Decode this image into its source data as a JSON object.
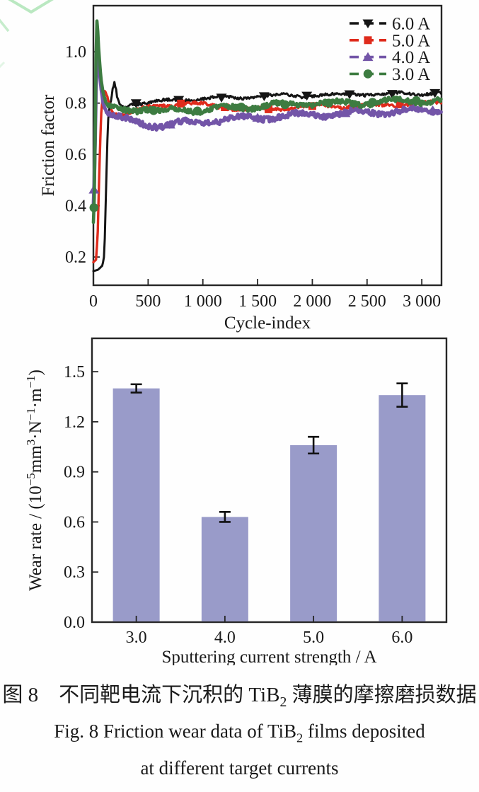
{
  "figure": {
    "captions": {
      "cn_parts": [
        {
          "t": "text",
          "v": "图 8　不同靶电流下沉积的 TiB"
        },
        {
          "t": "sub",
          "v": "2"
        },
        {
          "t": "text",
          "v": " 薄膜的摩擦磨损数据"
        }
      ],
      "en_line1_parts": [
        {
          "t": "text",
          "v": "Fig. 8 Friction wear data of TiB"
        },
        {
          "t": "sub",
          "v": "2"
        },
        {
          "t": "text",
          "v": " films deposited"
        }
      ],
      "en_line2_parts": [
        {
          "t": "text",
          "v": "at different target currents"
        }
      ]
    },
    "artifact_color": "#aee4b6",
    "axis_color": "#262626",
    "text_color": "#1a1a1a"
  },
  "chart_data": [
    {
      "type": "line",
      "title": "",
      "xlabel": "Cycle-index",
      "ylabel": "Friction factor",
      "xlim": [
        0,
        3180
      ],
      "ylim": [
        0.09,
        1.18
      ],
      "xticks": [
        0,
        500,
        1000,
        1500,
        2000,
        2500,
        3000
      ],
      "xtick_labels": [
        "0",
        "500",
        "1 000",
        "1 500",
        "2 000",
        "2 500",
        "3 000"
      ],
      "yticks": [
        0.2,
        0.4,
        0.6,
        0.8,
        1.0
      ],
      "ytick_labels": [
        "0.2",
        "0.4",
        "0.6",
        "0.8",
        "1.0"
      ],
      "grid": false,
      "legend_position": "top-right",
      "series": [
        {
          "name": "6.0 A",
          "color": "#151515",
          "marker": "triangle-down",
          "width": 3,
          "noise": 0.006,
          "points": [
            [
              0,
              0.145
            ],
            [
              40,
              0.15
            ],
            [
              80,
              0.165
            ],
            [
              95,
              0.19
            ],
            [
              105,
              0.28
            ],
            [
              115,
              0.45
            ],
            [
              125,
              0.62
            ],
            [
              135,
              0.73
            ],
            [
              150,
              0.79
            ],
            [
              165,
              0.815
            ],
            [
              180,
              0.86
            ],
            [
              192,
              0.88
            ],
            [
              205,
              0.855
            ],
            [
              220,
              0.815
            ],
            [
              240,
              0.795
            ],
            [
              270,
              0.785
            ],
            [
              310,
              0.79
            ],
            [
              360,
              0.8
            ],
            [
              420,
              0.8
            ],
            [
              500,
              0.802
            ],
            [
              600,
              0.806
            ],
            [
              700,
              0.81
            ],
            [
              850,
              0.815
            ],
            [
              1000,
              0.818
            ],
            [
              1150,
              0.822
            ],
            [
              1300,
              0.82
            ],
            [
              1450,
              0.825
            ],
            [
              1600,
              0.828
            ],
            [
              1750,
              0.83
            ],
            [
              1900,
              0.828
            ],
            [
              2050,
              0.832
            ],
            [
              2200,
              0.83
            ],
            [
              2350,
              0.835
            ],
            [
              2500,
              0.836
            ],
            [
              2650,
              0.834
            ],
            [
              2800,
              0.838
            ],
            [
              2950,
              0.836
            ],
            [
              3100,
              0.84
            ],
            [
              3180,
              0.838
            ]
          ],
          "marker_xs": [
            390,
            780,
            1170,
            1560,
            1950,
            2340,
            2730,
            3120
          ]
        },
        {
          "name": "5.0 A",
          "color": "#df2b1c",
          "marker": "square",
          "width": 3.4,
          "noise": 0.007,
          "points": [
            [
              0,
              0.18
            ],
            [
              25,
              0.19
            ],
            [
              40,
              0.3
            ],
            [
              55,
              0.55
            ],
            [
              70,
              0.75
            ],
            [
              85,
              0.83
            ],
            [
              100,
              0.85
            ],
            [
              120,
              0.835
            ],
            [
              145,
              0.8
            ],
            [
              175,
              0.775
            ],
            [
              210,
              0.762
            ],
            [
              260,
              0.758
            ],
            [
              320,
              0.764
            ],
            [
              400,
              0.772
            ],
            [
              500,
              0.78
            ],
            [
              620,
              0.79
            ],
            [
              750,
              0.797
            ],
            [
              880,
              0.8
            ],
            [
              1000,
              0.793
            ],
            [
              1150,
              0.786
            ],
            [
              1300,
              0.78
            ],
            [
              1450,
              0.775
            ],
            [
              1600,
              0.776
            ],
            [
              1750,
              0.78
            ],
            [
              1900,
              0.786
            ],
            [
              2050,
              0.79
            ],
            [
              2200,
              0.786
            ],
            [
              2350,
              0.79
            ],
            [
              2500,
              0.792
            ],
            [
              2650,
              0.79
            ],
            [
              2800,
              0.795
            ],
            [
              2950,
              0.797
            ],
            [
              3100,
              0.8
            ],
            [
              3180,
              0.8
            ]
          ],
          "marker_xs": [
            800,
            1200,
            1600,
            2000,
            2400,
            2800
          ]
        },
        {
          "name": "4.0 A",
          "color": "#7355a8",
          "marker": "triangle-up",
          "width": 5,
          "noise": 0.012,
          "points": [
            [
              0,
              0.4
            ],
            [
              12,
              0.55
            ],
            [
              22,
              0.82
            ],
            [
              32,
              0.95
            ],
            [
              42,
              0.98
            ],
            [
              55,
              0.93
            ],
            [
              70,
              0.86
            ],
            [
              90,
              0.8
            ],
            [
              115,
              0.772
            ],
            [
              150,
              0.758
            ],
            [
              200,
              0.748
            ],
            [
              270,
              0.736
            ],
            [
              350,
              0.727
            ],
            [
              450,
              0.72
            ],
            [
              550,
              0.716
            ],
            [
              650,
              0.715
            ],
            [
              750,
              0.718
            ],
            [
              900,
              0.724
            ],
            [
              1050,
              0.73
            ],
            [
              1200,
              0.735
            ],
            [
              1350,
              0.739
            ],
            [
              1500,
              0.743
            ],
            [
              1650,
              0.747
            ],
            [
              1800,
              0.751
            ],
            [
              1950,
              0.754
            ],
            [
              2100,
              0.757
            ],
            [
              2250,
              0.76
            ],
            [
              2400,
              0.763
            ],
            [
              2550,
              0.765
            ],
            [
              2700,
              0.767
            ],
            [
              2850,
              0.769
            ],
            [
              3000,
              0.771
            ],
            [
              3180,
              0.773
            ]
          ],
          "marker_xs": [
            5,
            700,
            1500,
            2300,
            3100
          ]
        },
        {
          "name": "3.0 A",
          "color": "#3d7c41",
          "marker": "circle",
          "width": 4.6,
          "noise": 0.011,
          "points": [
            [
              0,
              0.335
            ],
            [
              10,
              0.45
            ],
            [
              18,
              0.75
            ],
            [
              26,
              1.05
            ],
            [
              32,
              1.12
            ],
            [
              40,
              1.08
            ],
            [
              50,
              1.0
            ],
            [
              62,
              0.93
            ],
            [
              75,
              0.875
            ],
            [
              90,
              0.835
            ],
            [
              110,
              0.805
            ],
            [
              135,
              0.787
            ],
            [
              170,
              0.78
            ],
            [
              220,
              0.782
            ],
            [
              280,
              0.776
            ],
            [
              340,
              0.78
            ],
            [
              400,
              0.776
            ],
            [
              470,
              0.78
            ],
            [
              540,
              0.772
            ],
            [
              610,
              0.765
            ],
            [
              680,
              0.768
            ],
            [
              760,
              0.776
            ],
            [
              840,
              0.782
            ],
            [
              920,
              0.77
            ],
            [
              1000,
              0.768
            ],
            [
              1100,
              0.774
            ],
            [
              1200,
              0.78
            ],
            [
              1320,
              0.784
            ],
            [
              1450,
              0.787
            ],
            [
              1600,
              0.79
            ],
            [
              1750,
              0.794
            ],
            [
              1900,
              0.798
            ],
            [
              2050,
              0.8
            ],
            [
              2200,
              0.8
            ],
            [
              2350,
              0.8
            ],
            [
              2500,
              0.802
            ],
            [
              2650,
              0.806
            ],
            [
              2800,
              0.808
            ],
            [
              2950,
              0.81
            ],
            [
              3100,
              0.81
            ],
            [
              3180,
              0.81
            ]
          ],
          "marker_xs": [
            5,
            550,
            950,
            1350,
            1750,
            2150,
            2550,
            2950
          ]
        }
      ]
    },
    {
      "type": "bar",
      "title": "",
      "xlabel": "Sputtering current strength / A",
      "ylabel_parts": [
        {
          "t": "text",
          "v": "Wear rate / (10"
        },
        {
          "t": "sup",
          "v": "−5"
        },
        {
          "t": "text",
          "v": "mm"
        },
        {
          "t": "sup",
          "v": "3"
        },
        {
          "t": "text",
          "v": "·N"
        },
        {
          "t": "sup",
          "v": "−1"
        },
        {
          "t": "text",
          "v": "·m"
        },
        {
          "t": "sup",
          "v": "−1"
        },
        {
          "t": "text",
          "v": ")"
        }
      ],
      "categories": [
        "3.0",
        "4.0",
        "5.0",
        "6.0"
      ],
      "values": [
        1.4,
        0.63,
        1.06,
        1.36
      ],
      "errors": [
        0.025,
        0.03,
        0.05,
        0.07
      ],
      "ylim": [
        0,
        1.7
      ],
      "yticks": [
        0.0,
        0.3,
        0.6,
        0.9,
        1.2,
        1.5
      ],
      "ytick_labels": [
        "0.0",
        "0.3",
        "0.6",
        "0.9",
        "1.2",
        "1.5"
      ],
      "grid": false,
      "bar_color": "#999bc9",
      "error_color": "#111111"
    }
  ]
}
